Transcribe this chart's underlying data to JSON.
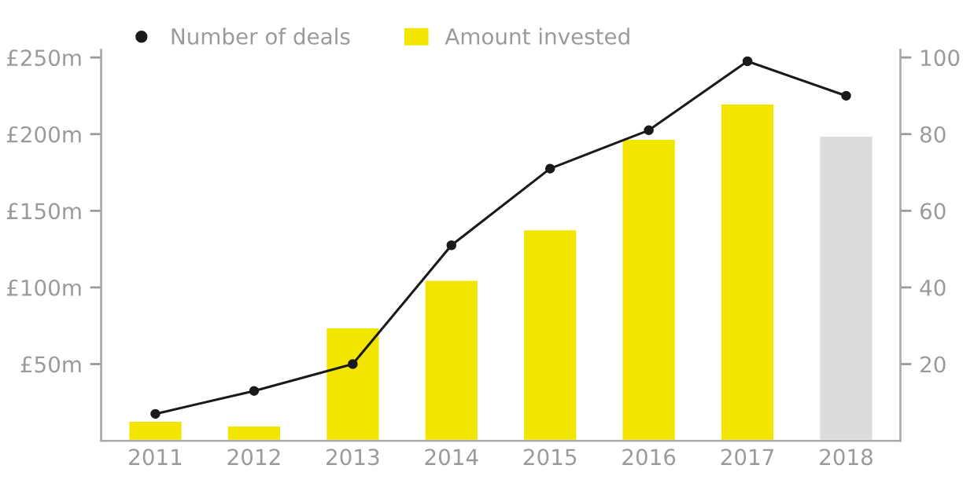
{
  "chart_data": {
    "type": "bar",
    "categories": [
      "2011",
      "2012",
      "2013",
      "2014",
      "2015",
      "2016",
      "2017",
      "2018"
    ],
    "series": [
      {
        "name": "Number of deals",
        "type": "line",
        "axis": "y2",
        "color": "#1a1a1a",
        "marker": "circle",
        "values": [
          7,
          13,
          20,
          51,
          71,
          81,
          99,
          90
        ]
      },
      {
        "name": "Amount invested",
        "color": "#f2e500",
        "colors": [
          "#f2e500",
          "#f2e500",
          "#f2e500",
          "#f2e500",
          "#f2e500",
          "#f2e500",
          "#f2e500",
          "#dcdcdc"
        ],
        "values": [
          13,
          10,
          74,
          105,
          138,
          197,
          220,
          199
        ]
      }
    ],
    "ylim": [
      0,
      255
    ],
    "yticks": [
      {
        "value": 50,
        "label": "£50m"
      },
      {
        "value": 100,
        "label": "£100m"
      },
      {
        "value": 150,
        "label": "£150m"
      },
      {
        "value": 200,
        "label": "£200m"
      },
      {
        "value": 250,
        "label": "£250m"
      }
    ],
    "y2lim": [
      0,
      102
    ],
    "y2ticks": [
      20,
      40,
      60,
      80,
      100
    ],
    "grid": false,
    "legend": "top"
  }
}
